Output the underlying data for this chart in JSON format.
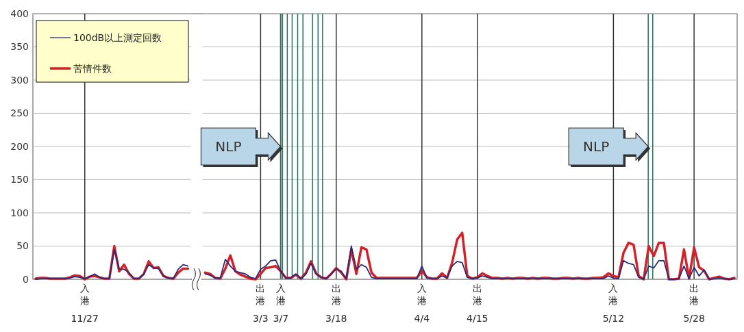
{
  "chart_data": [
    {
      "type": "line",
      "categories": [
        null,
        null,
        null,
        null,
        null,
        null,
        null,
        null,
        null,
        null,
        "入港 11/27",
        null,
        null,
        null,
        null,
        null,
        null,
        null,
        null,
        null,
        null,
        null,
        null,
        null,
        null,
        null,
        null,
        null,
        null,
        null,
        null,
        null
      ],
      "series": [
        {
          "name": "100dB以上測定回数",
          "color": "#2a2a7a",
          "values": [
            0,
            1,
            1,
            1,
            1,
            1,
            1,
            2,
            4,
            3,
            1,
            4,
            8,
            3,
            1,
            1,
            45,
            15,
            15,
            10,
            1,
            1,
            8,
            22,
            17,
            16,
            5,
            2,
            1,
            15,
            22,
            20
          ]
        },
        {
          "name": "苦情件数",
          "color": "#d42027",
          "values": [
            1,
            2,
            2,
            1,
            1,
            1,
            1,
            3,
            6,
            5,
            0,
            4,
            5,
            3,
            1,
            1,
            50,
            12,
            22,
            8,
            1,
            1,
            8,
            27,
            17,
            18,
            5,
            2,
            1,
            10,
            16,
            16
          ]
        }
      ],
      "ylim": [
        0,
        400
      ],
      "yticks": [
        0,
        50,
        100,
        150,
        200,
        250,
        300,
        350,
        400
      ],
      "grid": true,
      "legend": "top left",
      "marker": "none",
      "line_style": "solid"
    },
    {
      "type": "line",
      "categories": [
        null,
        null,
        null,
        null,
        null,
        null,
        null,
        null,
        null,
        null,
        null,
        "出港 3/3",
        null,
        null,
        null,
        "入港 3/7",
        null,
        null,
        null,
        null,
        null,
        null,
        null,
        null,
        null,
        null,
        "出港 3/18",
        null,
        null,
        null,
        null,
        null,
        null,
        null,
        null,
        null,
        null,
        null,
        null,
        null,
        null,
        null,
        null,
        "入港 4/4",
        null,
        null,
        null,
        null,
        null,
        null,
        null,
        null,
        null,
        null,
        "出港 4/15",
        null,
        null,
        null,
        null,
        null,
        null,
        null,
        null,
        null,
        null,
        null,
        null,
        null,
        null,
        null,
        null,
        null,
        null,
        null,
        null,
        null,
        null,
        null,
        null,
        null,
        null,
        "入港 5/12",
        null,
        null,
        null,
        null,
        null,
        null,
        null,
        null,
        null,
        null,
        null,
        null,
        null,
        null,
        null,
        "出港 5/28",
        null,
        null,
        null,
        null,
        null,
        null,
        null,
        null
      ],
      "series": [
        {
          "color": "#2a2a7a",
          "values": [
            8,
            6,
            2,
            2,
            30,
            20,
            12,
            10,
            8,
            3,
            1,
            15,
            20,
            28,
            29,
            12,
            2,
            2,
            8,
            1,
            8,
            24,
            8,
            3,
            1,
            8,
            16,
            12,
            1,
            50,
            15,
            22,
            18,
            3,
            1,
            1,
            1,
            1,
            1,
            1,
            1,
            1,
            1,
            20,
            2,
            1,
            1,
            5,
            2,
            20,
            27,
            25,
            3,
            1,
            2,
            5,
            3,
            1,
            1,
            1,
            1,
            1,
            1,
            1,
            1,
            1,
            1,
            1,
            1,
            1,
            1,
            1,
            1,
            1,
            1,
            1,
            1,
            1,
            1,
            1,
            5,
            2,
            1,
            28,
            24,
            22,
            3,
            0,
            20,
            17,
            28,
            28,
            0,
            0,
            1,
            20,
            1,
            18,
            5,
            14,
            0,
            1,
            2,
            1,
            0,
            1
          ]
        },
        {
          "color": "#d42027",
          "values": [
            10,
            8,
            2,
            1,
            16,
            36,
            12,
            7,
            4,
            1,
            0,
            8,
            17,
            18,
            20,
            12,
            2,
            2,
            7,
            1,
            10,
            27,
            9,
            3,
            1,
            8,
            17,
            10,
            0,
            45,
            8,
            48,
            45,
            10,
            2,
            2,
            2,
            2,
            2,
            2,
            2,
            2,
            2,
            13,
            3,
            1,
            1,
            9,
            2,
            25,
            60,
            70,
            5,
            1,
            3,
            9,
            5,
            2,
            2,
            1,
            2,
            1,
            2,
            2,
            1,
            2,
            1,
            2,
            2,
            1,
            1,
            2,
            2,
            1,
            2,
            1,
            1,
            2,
            2,
            3,
            9,
            5,
            3,
            40,
            55,
            52,
            5,
            0,
            50,
            35,
            55,
            55,
            0,
            0,
            1,
            45,
            1,
            48,
            18,
            13,
            0,
            2,
            4,
            1,
            0,
            2
          ]
        }
      ],
      "ylim": [
        0,
        400
      ],
      "yticks": [
        0,
        50,
        100,
        150,
        200,
        250,
        300,
        350,
        400
      ],
      "tick_labels": "x",
      "grid": true,
      "marker": "none",
      "line_style": "solid",
      "annotations": [
        "NLP",
        "NLP"
      ]
    }
  ]
}
